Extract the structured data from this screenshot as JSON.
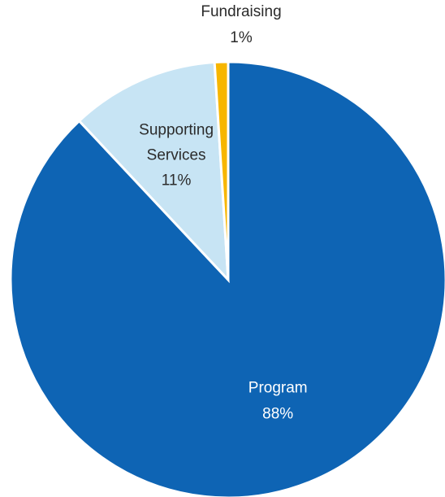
{
  "chart_data": {
    "type": "pie",
    "slices": [
      {
        "label": "Program",
        "value": 88,
        "value_label": "88%",
        "color": "#0e64b4",
        "text_color": "#ffffff"
      },
      {
        "label": "Supporting Services",
        "value": 11,
        "value_label": "11%",
        "color": "#c7e4f4",
        "text_color": "#2b2b2b"
      },
      {
        "label": "Fundraising",
        "value": 1,
        "value_label": "1%",
        "color": "#f7b600",
        "text_color": "#2b2b2b"
      }
    ],
    "start_angle_deg": 0,
    "direction": "clockwise",
    "label_position": "inside (Fundraising outside above)",
    "legend": "none"
  }
}
